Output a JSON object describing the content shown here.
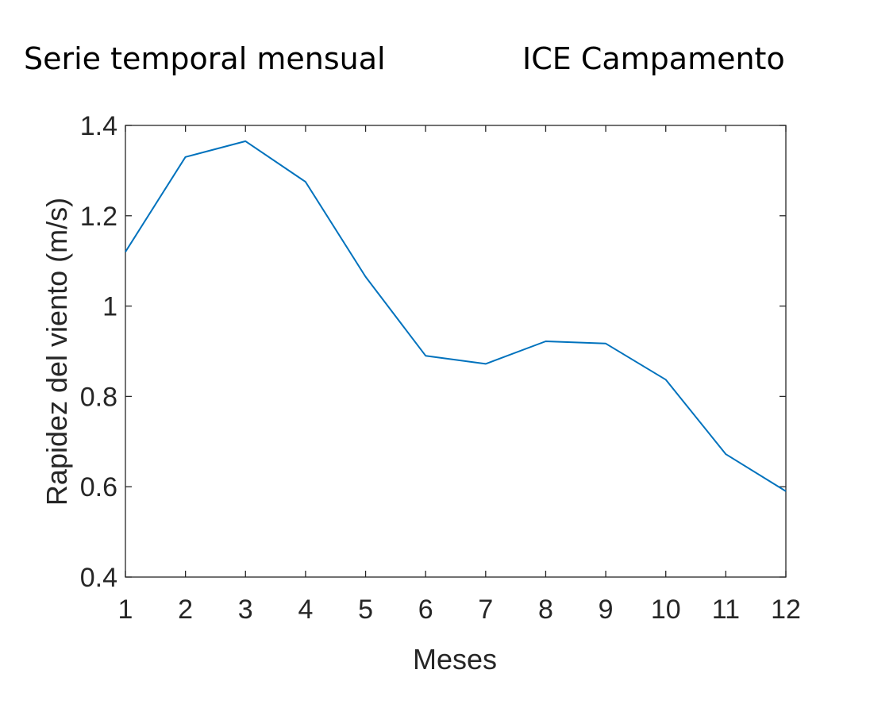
{
  "header": {
    "left_title": "Serie temporal mensual",
    "right_title": "ICE Campamento"
  },
  "chart_data": {
    "type": "line",
    "xlabel": "Meses",
    "ylabel": "Rapidez del viento (m/s)",
    "xlim": [
      1,
      12
    ],
    "ylim": [
      0.4,
      1.4
    ],
    "x_ticks": [
      1,
      2,
      3,
      4,
      5,
      6,
      7,
      8,
      9,
      10,
      11,
      12
    ],
    "y_ticks": [
      0.4,
      0.6,
      0.8,
      1,
      1.2,
      1.4
    ],
    "y_tick_labels": [
      "0.4",
      "0.6",
      "0.8",
      "1",
      "1.2",
      "1.4"
    ],
    "grid": false,
    "series": [
      {
        "color": "#0072BD",
        "x": [
          1,
          2,
          3,
          4,
          5,
          6,
          7,
          8,
          9,
          10,
          11,
          12
        ],
        "values": [
          1.12,
          1.33,
          1.365,
          1.275,
          1.065,
          0.89,
          0.872,
          0.922,
          0.917,
          0.837,
          0.672,
          0.59
        ]
      }
    ]
  }
}
